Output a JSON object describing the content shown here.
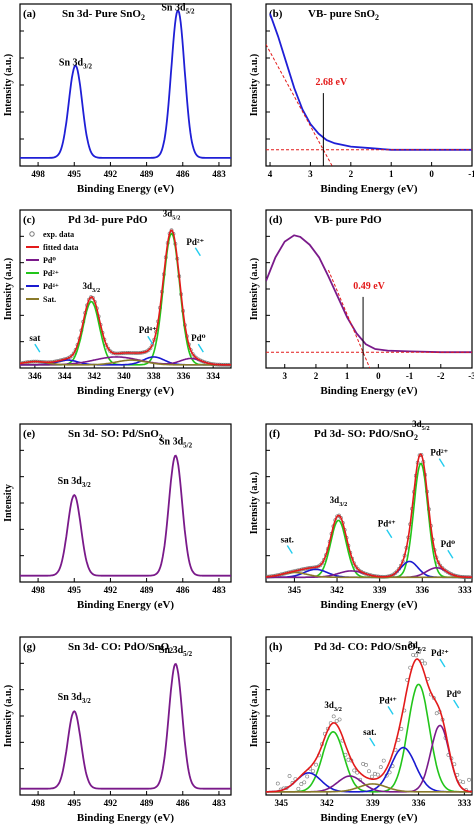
{
  "figure": {
    "colors": {
      "blue": "#1f1fd6",
      "purple": "#7a1a8a",
      "red": "#e31a1a",
      "green": "#22c51a",
      "darkblue": "#1a1ad0",
      "olive": "#8a7a2a",
      "gray": "#777777",
      "cyan": "#22ccee"
    }
  },
  "chart_data": [
    {
      "id": "a",
      "type": "line",
      "panel_label": "(a)",
      "title": "Sn 3d- Pure SnO₂",
      "xlabel": "Binding Energy (eV)",
      "ylabel": "Intensity (a.u.)",
      "xlim": [
        499.5,
        482
      ],
      "xticks": [
        "498",
        "495",
        "492",
        "489",
        "486",
        "483"
      ],
      "xtick_values": [
        498,
        495,
        492,
        489,
        486,
        483
      ],
      "ylim": [
        0,
        1
      ],
      "peaks_annotations": [
        {
          "text": "Sn 3d",
          "sub": "3/2",
          "x": 494.9,
          "y": 0.62
        },
        {
          "text": "Sn 3d",
          "sub": "5/2",
          "x": 486.4,
          "y": 0.96
        }
      ],
      "series": [
        {
          "color": "blue",
          "baseline": 0.05,
          "peaks": [
            [
              494.9,
              0.57,
              0.55
            ],
            [
              486.4,
              0.91,
              0.55
            ]
          ]
        }
      ]
    },
    {
      "id": "b",
      "type": "line",
      "panel_label": "(b)",
      "title": "VB- pure SnO₂",
      "xlabel": "Binding Energy (eV)",
      "ylabel": "Intensity (a.u.)",
      "xlim": [
        4.1,
        -1
      ],
      "xticks": [
        "4",
        "3",
        "2",
        "1",
        "0",
        "-1"
      ],
      "xtick_values": [
        4,
        3,
        2,
        1,
        0,
        -1
      ],
      "ylim": [
        0,
        1
      ],
      "valence_edge": {
        "value": 2.68,
        "label": "2.68 eV"
      },
      "series": [
        {
          "color": "blue",
          "points": [
            [
              4.0,
              0.94
            ],
            [
              3.8,
              0.8
            ],
            [
              3.6,
              0.64
            ],
            [
              3.4,
              0.48
            ],
            [
              3.2,
              0.35
            ],
            [
              3.0,
              0.26
            ],
            [
              2.8,
              0.2
            ],
            [
              2.6,
              0.16
            ],
            [
              2.4,
              0.14
            ],
            [
              2.0,
              0.12
            ],
            [
              1.5,
              0.11
            ],
            [
              1.0,
              0.1
            ],
            [
              0.5,
              0.1
            ],
            [
              0.0,
              0.1
            ],
            [
              -0.5,
              0.1
            ],
            [
              -1.0,
              0.1
            ]
          ]
        }
      ]
    },
    {
      "id": "c",
      "type": "line",
      "panel_label": "(c)",
      "title": "Pd 3d- pure PdO",
      "xlabel": "Binding Energy (eV)",
      "ylabel": "Intensity (a.u.)",
      "xlim": [
        347,
        332.8
      ],
      "xticks": [
        "346",
        "344",
        "342",
        "340",
        "338",
        "336",
        "334"
      ],
      "xtick_values": [
        346,
        344,
        342,
        340,
        338,
        336,
        334
      ],
      "ylim": [
        0,
        1
      ],
      "legend": [
        {
          "label": "exp. data",
          "color": "gray",
          "kind": "circle"
        },
        {
          "label": "fitted data",
          "color": "red",
          "kind": "line"
        },
        {
          "label": "Pd⁰",
          "color": "purple",
          "kind": "line"
        },
        {
          "label": "Pd²⁺",
          "color": "green",
          "kind": "line"
        },
        {
          "label": "Pd⁴⁺",
          "color": "darkblue",
          "kind": "line"
        },
        {
          "label": "Sat.",
          "color": "olive",
          "kind": "line"
        }
      ],
      "peak_labels": [
        {
          "text": "3d",
          "sub": "3/2",
          "x": 342.2,
          "y": 0.5
        },
        {
          "text": "3d",
          "sub": "5/2",
          "x": 336.8,
          "y": 0.96
        },
        {
          "text": "Pd²⁺",
          "x": 335.2,
          "y": 0.78,
          "arrow": true
        },
        {
          "text": "Pd⁴⁺",
          "x": 338.4,
          "y": 0.22,
          "arrow": true
        },
        {
          "text": "Pd⁰",
          "x": 335.0,
          "y": 0.17,
          "arrow": true
        },
        {
          "text": "sat",
          "x": 346.0,
          "y": 0.17,
          "arrow": true
        }
      ],
      "components": [
        {
          "name": "Pd²⁺",
          "color": "green",
          "peaks": [
            [
              342.2,
              0.4,
              0.55
            ],
            [
              336.8,
              0.83,
              0.55
            ]
          ]
        },
        {
          "name": "Pd⁴⁺",
          "color": "darkblue",
          "peaks": [
            [
              343.8,
              0.03,
              0.7
            ],
            [
              338.0,
              0.05,
              0.7
            ]
          ]
        },
        {
          "name": "Pd⁰",
          "color": "purple",
          "peaks": [
            [
              340.5,
              0.05,
              1.5
            ],
            [
              335.5,
              0.04,
              0.7
            ]
          ]
        },
        {
          "name": "Sat.",
          "color": "olive",
          "peaks": [
            [
              346.0,
              0.02,
              0.8
            ],
            [
              339.5,
              0.03,
              1.0
            ]
          ]
        }
      ],
      "baseline": 0.02
    },
    {
      "id": "d",
      "type": "line",
      "panel_label": "(d)",
      "title": "VB- pure PdO",
      "xlabel": "Binding Energy (eV)",
      "ylabel": "Intensity (a.u.)",
      "xlim": [
        3.6,
        -3
      ],
      "xticks": [
        "3",
        "2",
        "1",
        "0",
        "-1",
        "-2",
        "-3"
      ],
      "xtick_values": [
        3,
        2,
        1,
        0,
        -1,
        -2,
        -3
      ],
      "ylim": [
        0,
        1
      ],
      "valence_edge": {
        "value": 0.49,
        "label": "0.49 eV"
      },
      "series": [
        {
          "color": "purple",
          "points": [
            [
              3.6,
              0.55
            ],
            [
              3.3,
              0.7
            ],
            [
              3.0,
              0.8
            ],
            [
              2.7,
              0.84
            ],
            [
              2.5,
              0.83
            ],
            [
              2.2,
              0.78
            ],
            [
              1.9,
              0.7
            ],
            [
              1.6,
              0.58
            ],
            [
              1.3,
              0.45
            ],
            [
              1.0,
              0.32
            ],
            [
              0.7,
              0.22
            ],
            [
              0.4,
              0.15
            ],
            [
              0.1,
              0.12
            ],
            [
              -0.3,
              0.11
            ],
            [
              -1.0,
              0.105
            ],
            [
              -2.0,
              0.1
            ],
            [
              -3.0,
              0.1
            ]
          ]
        }
      ]
    },
    {
      "id": "e",
      "type": "line",
      "panel_label": "(e)",
      "title": "Sn 3d- SO: Pd/SnO₂",
      "xlabel": "Binding Energy (eV)",
      "ylabel": "Intensity",
      "xlim": [
        499.5,
        482
      ],
      "xticks": [
        "498",
        "495",
        "492",
        "489",
        "486",
        "483"
      ],
      "xtick_values": [
        498,
        495,
        492,
        489,
        486,
        483
      ],
      "ylim": [
        0,
        1
      ],
      "peaks_annotations": [
        {
          "text": "Sn 3d",
          "sub": "3/2",
          "x": 495.0,
          "y": 0.62
        },
        {
          "text": "Sn 3d",
          "sub": "5/2",
          "x": 486.6,
          "y": 0.87
        }
      ],
      "series": [
        {
          "color": "purple",
          "baseline": 0.04,
          "peaks": [
            [
              495.0,
              0.51,
              0.55
            ],
            [
              486.6,
              0.76,
              0.55
            ]
          ]
        }
      ]
    },
    {
      "id": "f",
      "type": "line",
      "panel_label": "(f)",
      "title": "Pd 3d- SO: PdO/SnO₂",
      "xlabel": "Binding Energy (eV)",
      "ylabel": "Intensity (a.u.)",
      "xlim": [
        347,
        332.5
      ],
      "xticks": [
        "345",
        "342",
        "339",
        "336",
        "333"
      ],
      "xtick_values": [
        345,
        342,
        339,
        336,
        333
      ],
      "ylim": [
        0,
        1
      ],
      "peak_labels": [
        {
          "text": "3d",
          "sub": "5/2",
          "x": 336.1,
          "y": 0.98
        },
        {
          "text": "Pd²⁺",
          "x": 334.8,
          "y": 0.8,
          "arrow": true
        },
        {
          "text": "3d",
          "sub": "3/2",
          "x": 341.9,
          "y": 0.5
        },
        {
          "text": "Pd⁴⁺",
          "x": 338.5,
          "y": 0.35,
          "arrow": true
        },
        {
          "text": "Pd⁰",
          "x": 334.2,
          "y": 0.22,
          "arrow": true
        },
        {
          "text": "sat.",
          "x": 345.5,
          "y": 0.25,
          "arrow": true
        }
      ],
      "components": [
        {
          "name": "Pd²⁺",
          "color": "green",
          "peaks": [
            [
              341.9,
              0.36,
              0.55
            ],
            [
              336.1,
              0.72,
              0.5
            ]
          ]
        },
        {
          "name": "Pd⁴⁺",
          "color": "darkblue",
          "peaks": [
            [
              343.5,
              0.05,
              0.8
            ],
            [
              336.9,
              0.1,
              0.6
            ]
          ]
        },
        {
          "name": "Pd⁰",
          "color": "purple",
          "peaks": [
            [
              341.0,
              0.04,
              0.9
            ],
            [
              335.0,
              0.06,
              0.7
            ]
          ]
        },
        {
          "name": "Sat.",
          "color": "olive",
          "peaks": [
            [
              345.0,
              0.03,
              0.9
            ]
          ]
        }
      ],
      "baseline": 0.03
    },
    {
      "id": "g",
      "type": "line",
      "panel_label": "(g)",
      "title": "Sn 3d- CO: PdO/SnO₂",
      "xlabel": "Binding Energy (eV)",
      "ylabel": "Intensity (a.u.)",
      "xlim": [
        499.5,
        482
      ],
      "xticks": [
        "498",
        "495",
        "492",
        "489",
        "486",
        "483"
      ],
      "xtick_values": [
        498,
        495,
        492,
        489,
        486,
        483
      ],
      "ylim": [
        0,
        1
      ],
      "peaks_annotations": [
        {
          "text": "Sn 3d",
          "sub": "3/2",
          "x": 495.0,
          "y": 0.6
        },
        {
          "text": "Sn 3d",
          "sub": "5/2",
          "x": 486.6,
          "y": 0.9
        }
      ],
      "series": [
        {
          "color": "purple",
          "baseline": 0.04,
          "peaks": [
            [
              495.0,
              0.49,
              0.55
            ],
            [
              486.6,
              0.79,
              0.55
            ]
          ]
        }
      ]
    },
    {
      "id": "h",
      "type": "line",
      "panel_label": "(h)",
      "title": "Pd 3d- CO: PdO/SnO₂",
      "xlabel": "Binding Energy (eV)",
      "ylabel": "Intensity (a.u.)",
      "xlim": [
        346,
        332.5
      ],
      "xticks": [
        "345",
        "342",
        "339",
        "336",
        "333"
      ],
      "xtick_values": [
        345,
        342,
        339,
        336,
        333
      ],
      "ylim": [
        0,
        1
      ],
      "peak_labels": [
        {
          "text": "3d",
          "sub": "5/2",
          "x": 336.1,
          "y": 0.93
        },
        {
          "text": "Pd²⁺",
          "x": 334.6,
          "y": 0.88,
          "arrow": true
        },
        {
          "text": "Pd⁰",
          "x": 333.7,
          "y": 0.62,
          "arrow": true
        },
        {
          "text": "3d",
          "sub": "3/2",
          "x": 341.6,
          "y": 0.55
        },
        {
          "text": "Pd⁴⁺",
          "x": 338.0,
          "y": 0.58,
          "arrow": true
        },
        {
          "text": "sat.",
          "x": 339.2,
          "y": 0.38,
          "arrow": true
        }
      ],
      "components": [
        {
          "name": "Pd²⁺",
          "color": "green",
          "peaks": [
            [
              341.6,
              0.38,
              0.7
            ],
            [
              336.0,
              0.68,
              0.7
            ]
          ]
        },
        {
          "name": "Pd⁴⁺",
          "color": "darkblue",
          "peaks": [
            [
              343.2,
              0.12,
              0.8
            ],
            [
              337.0,
              0.28,
              0.8
            ]
          ]
        },
        {
          "name": "Pd⁰",
          "color": "purple",
          "peaks": [
            [
              340.5,
              0.1,
              0.8
            ],
            [
              334.6,
              0.42,
              0.6
            ]
          ]
        },
        {
          "name": "Sat.",
          "color": "olive",
          "peaks": [
            [
              339.0,
              0.05,
              0.9
            ]
          ]
        }
      ],
      "baseline": 0.02,
      "noisy": true
    }
  ]
}
